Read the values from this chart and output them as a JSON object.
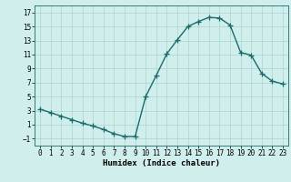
{
  "x": [
    0,
    1,
    2,
    3,
    4,
    5,
    6,
    7,
    8,
    9,
    10,
    11,
    12,
    13,
    14,
    15,
    16,
    17,
    18,
    19,
    20,
    21,
    22,
    23
  ],
  "y": [
    3.2,
    2.7,
    2.2,
    1.7,
    1.2,
    0.8,
    0.3,
    -0.3,
    -0.7,
    -0.7,
    5.0,
    8.0,
    11.1,
    13.1,
    15.0,
    15.7,
    16.3,
    16.2,
    15.2,
    11.3,
    10.9,
    8.3,
    7.2,
    6.8
  ],
  "xlabel": "Humidex (Indice chaleur)",
  "xlim": [
    -0.5,
    23.5
  ],
  "ylim": [
    -2,
    18
  ],
  "yticks": [
    -1,
    1,
    3,
    5,
    7,
    9,
    11,
    13,
    15,
    17
  ],
  "xticks": [
    0,
    1,
    2,
    3,
    4,
    5,
    6,
    7,
    8,
    9,
    10,
    11,
    12,
    13,
    14,
    15,
    16,
    17,
    18,
    19,
    20,
    21,
    22,
    23
  ],
  "line_color": "#1a6b6b",
  "bg_color": "#d0eeec",
  "grid_color": "#aad4d0",
  "marker": "+",
  "marker_size": 4,
  "line_width": 1.0,
  "axis_fontsize": 6.5,
  "tick_fontsize": 5.5
}
